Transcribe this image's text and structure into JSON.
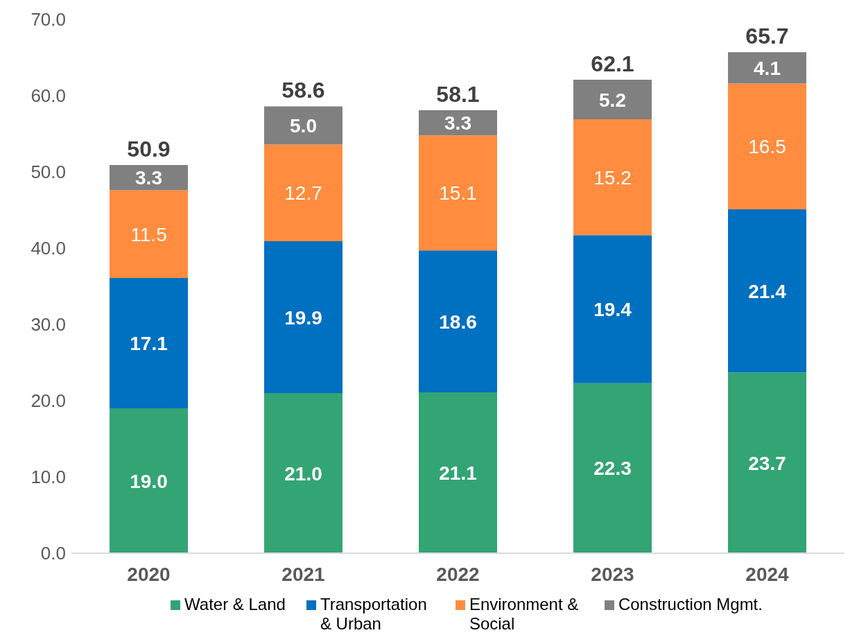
{
  "chart_data": {
    "type": "bar",
    "stacked": true,
    "categories": [
      "2020",
      "2021",
      "2022",
      "2023",
      "2024"
    ],
    "series": [
      {
        "name": "Water & Land",
        "color": "#33a474",
        "values": [
          19.0,
          21.0,
          21.1,
          22.3,
          23.7
        ],
        "value_labels": [
          "19.0",
          "21.0",
          "21.1",
          "22.3",
          "23.7"
        ]
      },
      {
        "name": "Transportation & Urban",
        "color": "#0070c0",
        "values": [
          17.1,
          19.9,
          18.6,
          19.4,
          21.4
        ],
        "value_labels": [
          "17.1",
          "19.9",
          "18.6",
          "19.4",
          "21.4"
        ]
      },
      {
        "name": "Environment & Social",
        "color": "#ff8c3f",
        "values": [
          11.5,
          12.7,
          15.1,
          15.2,
          16.5
        ],
        "value_labels": [
          "11.5",
          "12.7",
          "15.1",
          "15.2",
          "16.5"
        ]
      },
      {
        "name": "Construction Mgmt.",
        "color": "#808080",
        "values": [
          3.3,
          5.0,
          3.3,
          5.2,
          4.1
        ],
        "value_labels": [
          "3.3",
          "5.0",
          "3.3",
          "5.2",
          "4.1"
        ]
      }
    ],
    "totals": [
      "50.9",
      "58.6",
      "58.1",
      "62.1",
      "65.7"
    ],
    "ylim": [
      0,
      70
    ],
    "yticks": [
      {
        "value": 0,
        "label": "0.0"
      },
      {
        "value": 10,
        "label": "10.0"
      },
      {
        "value": 20,
        "label": "20.0"
      },
      {
        "value": 30,
        "label": "30.0"
      },
      {
        "value": 40,
        "label": "40.0"
      },
      {
        "value": 50,
        "label": "50.0"
      },
      {
        "value": 60,
        "label": "60.0"
      },
      {
        "value": 70,
        "label": "70.0"
      }
    ],
    "grid": false,
    "legend": "bottom"
  }
}
